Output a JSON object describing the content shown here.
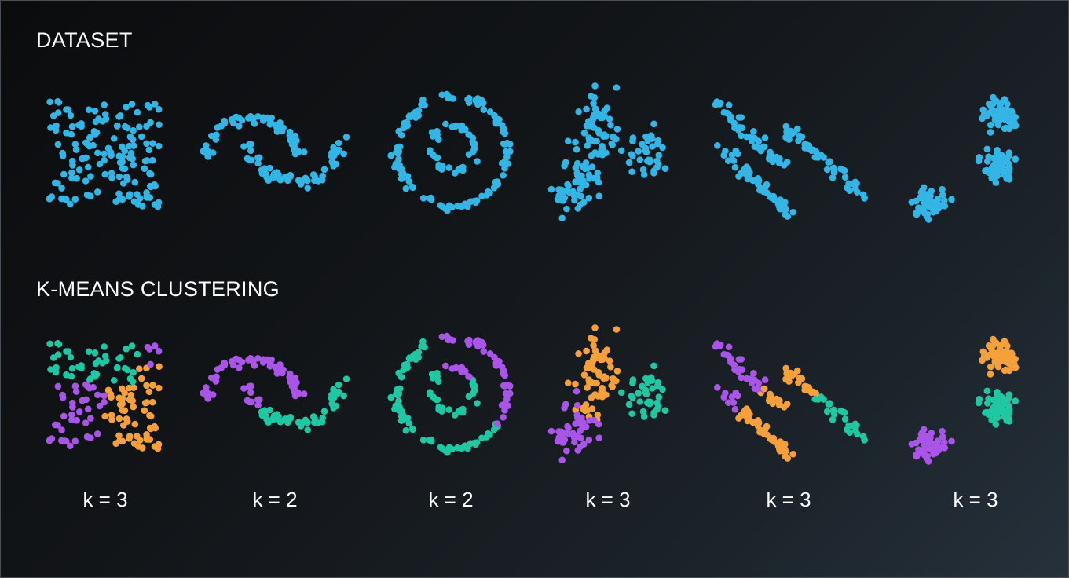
{
  "headings": {
    "dataset": "DATASET",
    "kmeans": "K-MEANS CLUSTERING"
  },
  "colors": {
    "dataset_points": "#33b5e5",
    "cluster_a": "#a855e8",
    "cluster_b": "#f5a03a",
    "cluster_c": "#1fc7a3",
    "text": "#ffffff"
  },
  "datasets": [
    {
      "shape": "uniform-square",
      "k_label": "k = 3",
      "k": 3
    },
    {
      "shape": "two-moons",
      "k_label": "k = 2",
      "k": 2
    },
    {
      "shape": "concentric-circles",
      "k_label": "k = 2",
      "k": 2
    },
    {
      "shape": "varied-density-blobs",
      "k_label": "k = 3",
      "k": 3
    },
    {
      "shape": "anisotropic-stripes",
      "k_label": "k = 3",
      "k": 3
    },
    {
      "shape": "three-blobs",
      "k_label": "k = 3",
      "k": 3
    }
  ]
}
